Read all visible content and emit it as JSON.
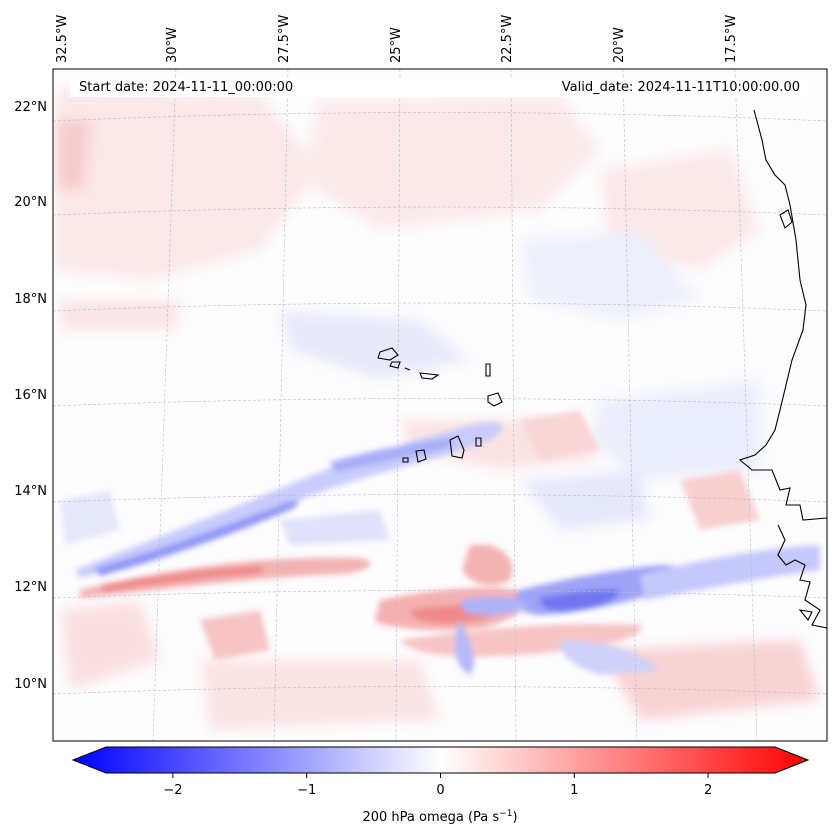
{
  "map": {
    "start_date": "Start date: 2024-11-11_00:00:00",
    "valid_date": "Valid_date: 2024-11-11T10:00:00.00",
    "lon_labels": [
      "32.5°W",
      "30°W",
      "27.5°W",
      "25°W",
      "22.5°W",
      "20°W",
      "17.5°W"
    ],
    "lat_labels": [
      "22°N",
      "20°N",
      "18°N",
      "16°N",
      "14°N",
      "12°N",
      "10°N"
    ],
    "colors": {
      "negative": "#0000ff",
      "zero": "#ffffff",
      "positive": "#ff0000",
      "coastline": "#000000"
    }
  },
  "colorbar": {
    "ticks": [
      "−2",
      "−1",
      "0",
      "1",
      "2"
    ],
    "tick_values": [
      -2,
      -1,
      0,
      1,
      2
    ],
    "range": [
      -2.5,
      2.5
    ],
    "label": "200 hPa omega (Pa s",
    "label_sup": "−1",
    "label_end": ")"
  }
}
